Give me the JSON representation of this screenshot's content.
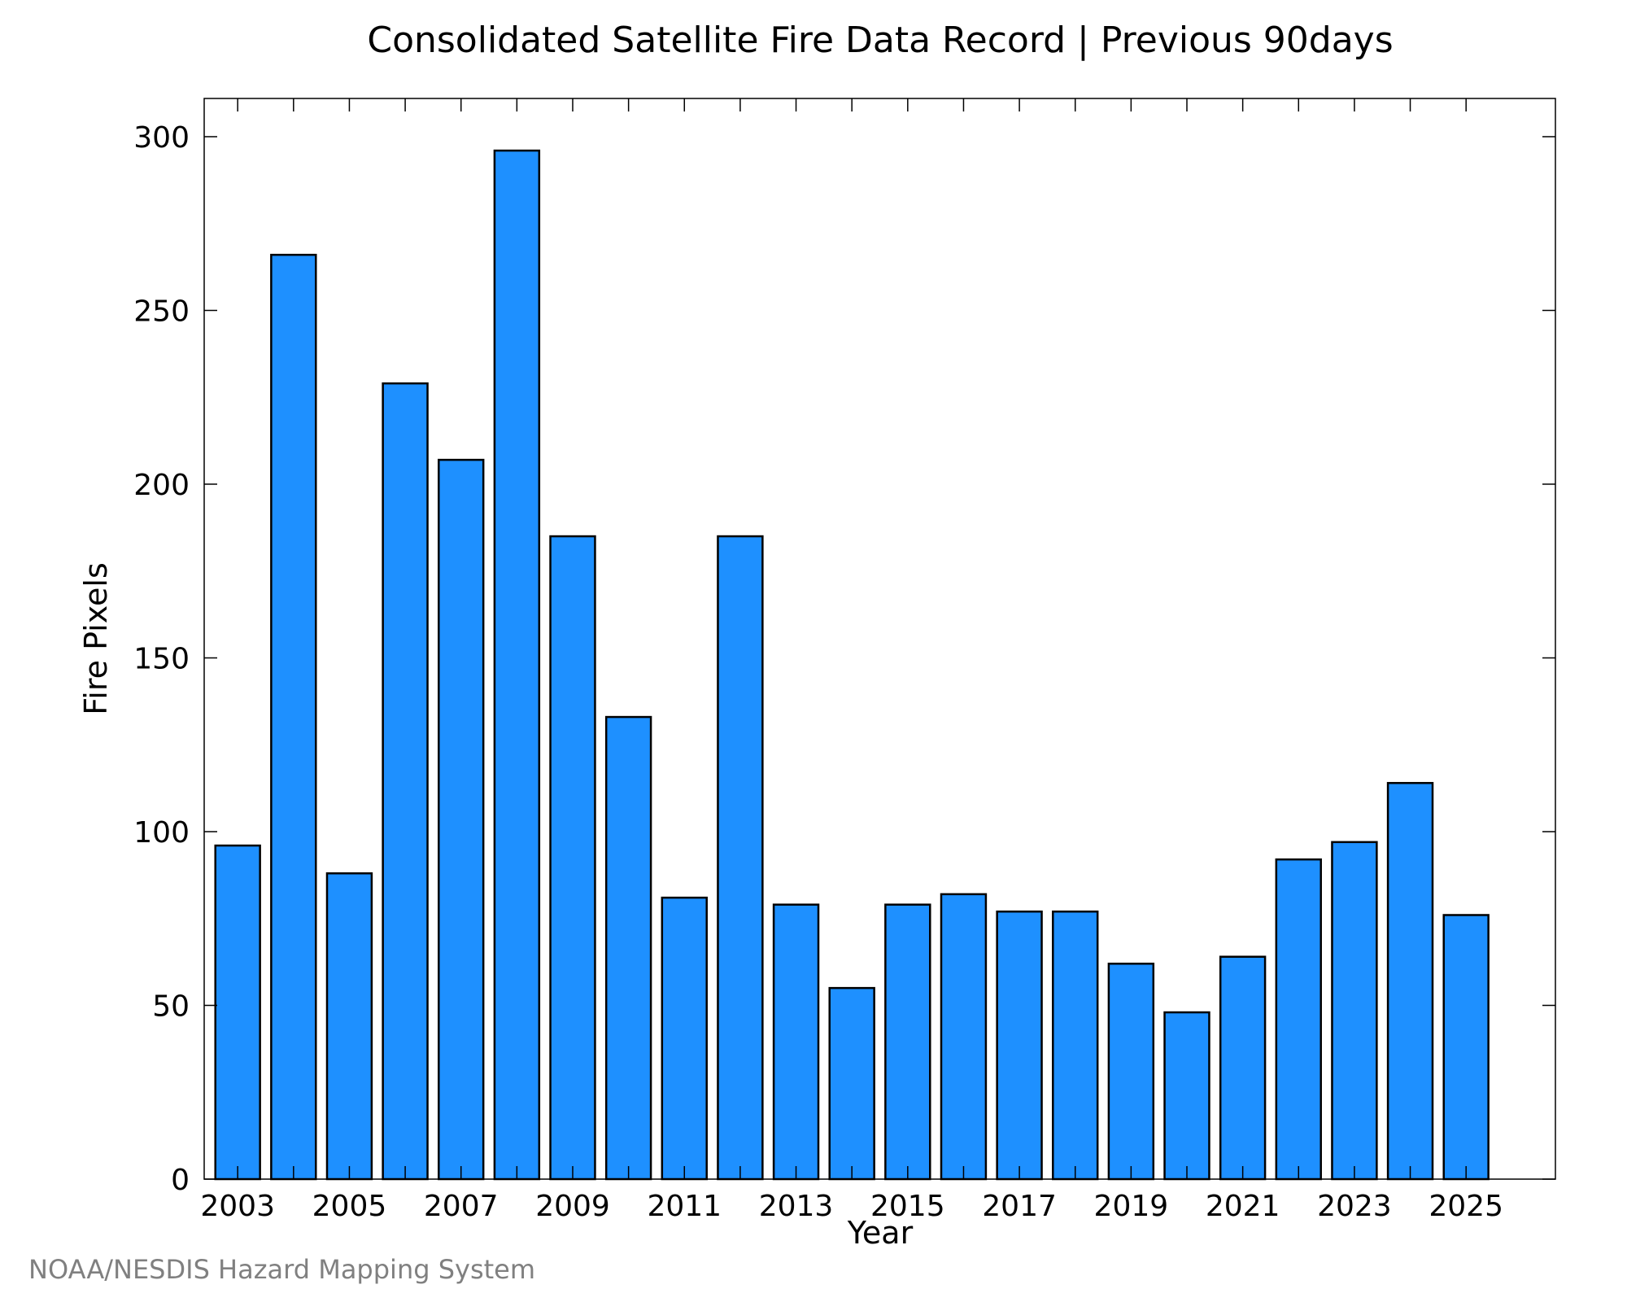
{
  "chart_data": {
    "type": "bar",
    "title": "Consolidated Satellite Fire Data Record | Previous 90days",
    "xlabel": "Year",
    "ylabel": "Fire Pixels",
    "categories": [
      "2003",
      "2004",
      "2005",
      "2006",
      "2007",
      "2008",
      "2009",
      "2010",
      "2011",
      "2012",
      "2013",
      "2014",
      "2015",
      "2016",
      "2017",
      "2018",
      "2019",
      "2020",
      "2021",
      "2022",
      "2023",
      "2024",
      "2025"
    ],
    "values": [
      96,
      266,
      88,
      229,
      207,
      296,
      185,
      133,
      81,
      185,
      79,
      55,
      79,
      82,
      77,
      77,
      62,
      48,
      64,
      92,
      97,
      114,
      76
    ],
    "x_tick_labels": [
      "2003",
      "2005",
      "2007",
      "2009",
      "2011",
      "2013",
      "2015",
      "2017",
      "2019",
      "2021",
      "2023",
      "2025"
    ],
    "y_ticks": [
      0,
      50,
      100,
      150,
      200,
      250,
      300
    ],
    "ylim": [
      0,
      311
    ],
    "xlim": [
      2002.4,
      2026.6
    ],
    "grid": false,
    "bar_color": "#1e90ff",
    "edge_color": "#000000"
  },
  "credit": "NOAA/NESDIS Hazard Mapping System"
}
